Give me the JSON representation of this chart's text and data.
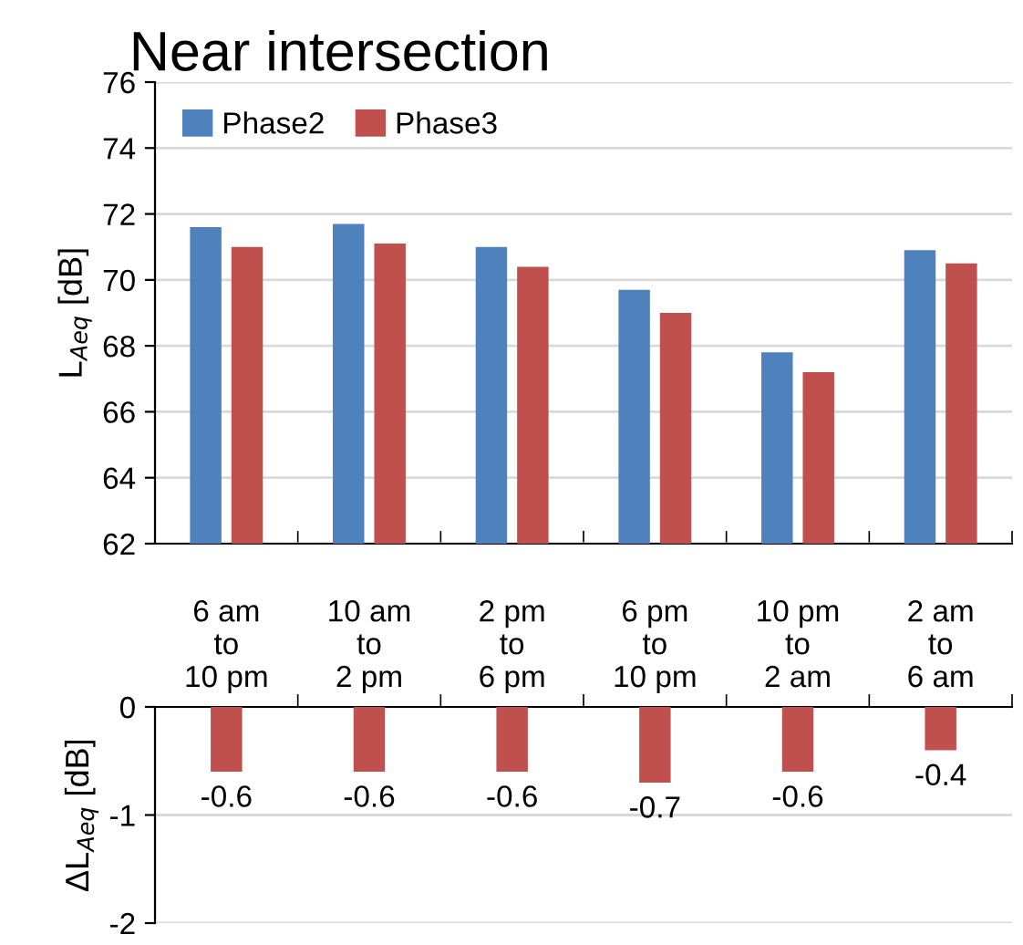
{
  "chart_data": [
    {
      "type": "bar",
      "title": "Near intersection",
      "ylabel": "L$_{Aeq}$ [dB]",
      "categories": [
        "6 am\nto\n10 pm",
        "10 am\nto\n2 pm",
        "2 pm\nto\n6 pm",
        "6 pm\nto\n10 pm",
        "10 pm\nto\n2 am",
        "2 am\nto\n6 am"
      ],
      "series": [
        {
          "name": "Phase2",
          "color": "#4f81bd",
          "values": [
            71.6,
            71.7,
            71.0,
            69.7,
            67.8,
            70.9
          ]
        },
        {
          "name": "Phase3",
          "color": "#c0504d",
          "values": [
            71.0,
            71.1,
            70.4,
            69.0,
            67.2,
            70.5
          ]
        }
      ],
      "ylim": [
        62,
        76
      ],
      "yticks": [
        62,
        64,
        66,
        68,
        70,
        72,
        74,
        76
      ],
      "grid": "y",
      "legend": "top left"
    },
    {
      "type": "bar",
      "ylabel": "ΔL$_{Aeq}$ [dB]",
      "categories": [
        null,
        null,
        null,
        null,
        null,
        null
      ],
      "series": [
        {
          "color": "#c0504d",
          "values": [
            -0.6,
            -0.6,
            -0.6,
            -0.7,
            -0.6,
            -0.4
          ]
        }
      ],
      "ylim": [
        -2,
        0
      ],
      "yticks": [
        -2,
        -1,
        0
      ],
      "grid": "y",
      "data_labels": true,
      "tick_labels": "y"
    }
  ]
}
